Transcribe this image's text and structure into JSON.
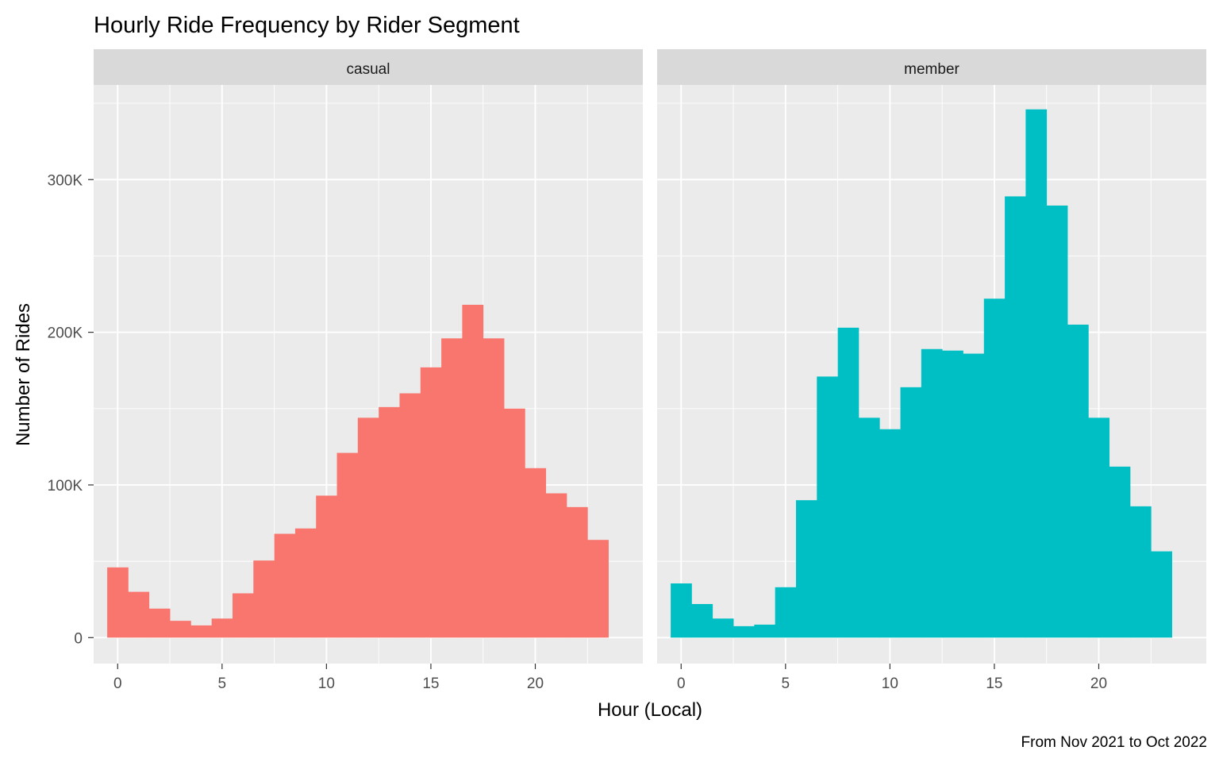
{
  "chart_data": {
    "type": "bar",
    "title": "Hourly Ride Frequency by Rider Segment",
    "xlabel": "Hour (Local)",
    "ylabel": "Number of Rides",
    "caption": "From Nov 2021 to Oct 2022",
    "x": [
      0,
      1,
      2,
      3,
      4,
      5,
      6,
      7,
      8,
      9,
      10,
      11,
      12,
      13,
      14,
      15,
      16,
      17,
      18,
      19,
      20,
      21,
      22,
      23
    ],
    "x_ticks": [
      0,
      5,
      10,
      15,
      20
    ],
    "x_tick_labels": [
      "0",
      "5",
      "10",
      "15",
      "20"
    ],
    "xlim": [
      -1.15,
      25.15
    ],
    "ylim": [
      -17000,
      362000
    ],
    "y_ticks": [
      0,
      100000,
      200000,
      300000
    ],
    "y_tick_labels": [
      "0",
      "100K",
      "200K",
      "300K"
    ],
    "grid": true,
    "legend": "none",
    "facets": [
      {
        "name": "casual",
        "color": "#F8766D",
        "values": [
          46000,
          30000,
          19000,
          11000,
          8000,
          12500,
          29000,
          50500,
          68000,
          71500,
          93000,
          121000,
          144000,
          151000,
          160000,
          177000,
          196000,
          218000,
          196000,
          150000,
          111000,
          94500,
          85500,
          64000
        ]
      },
      {
        "name": "member",
        "color": "#00BFC4",
        "values": [
          35500,
          22000,
          12500,
          7500,
          8500,
          33000,
          90000,
          171000,
          203000,
          144000,
          136500,
          164000,
          189000,
          188000,
          186000,
          222000,
          289000,
          346000,
          283000,
          205000,
          144000,
          112000,
          86000,
          56500
        ]
      }
    ]
  },
  "colors": {
    "panel_background": "#EBEBEB",
    "strip_background": "#D9D9D9",
    "grid_line": "#FFFFFF",
    "axis_text": "#4D4D4D",
    "title_text": "#000000"
  }
}
